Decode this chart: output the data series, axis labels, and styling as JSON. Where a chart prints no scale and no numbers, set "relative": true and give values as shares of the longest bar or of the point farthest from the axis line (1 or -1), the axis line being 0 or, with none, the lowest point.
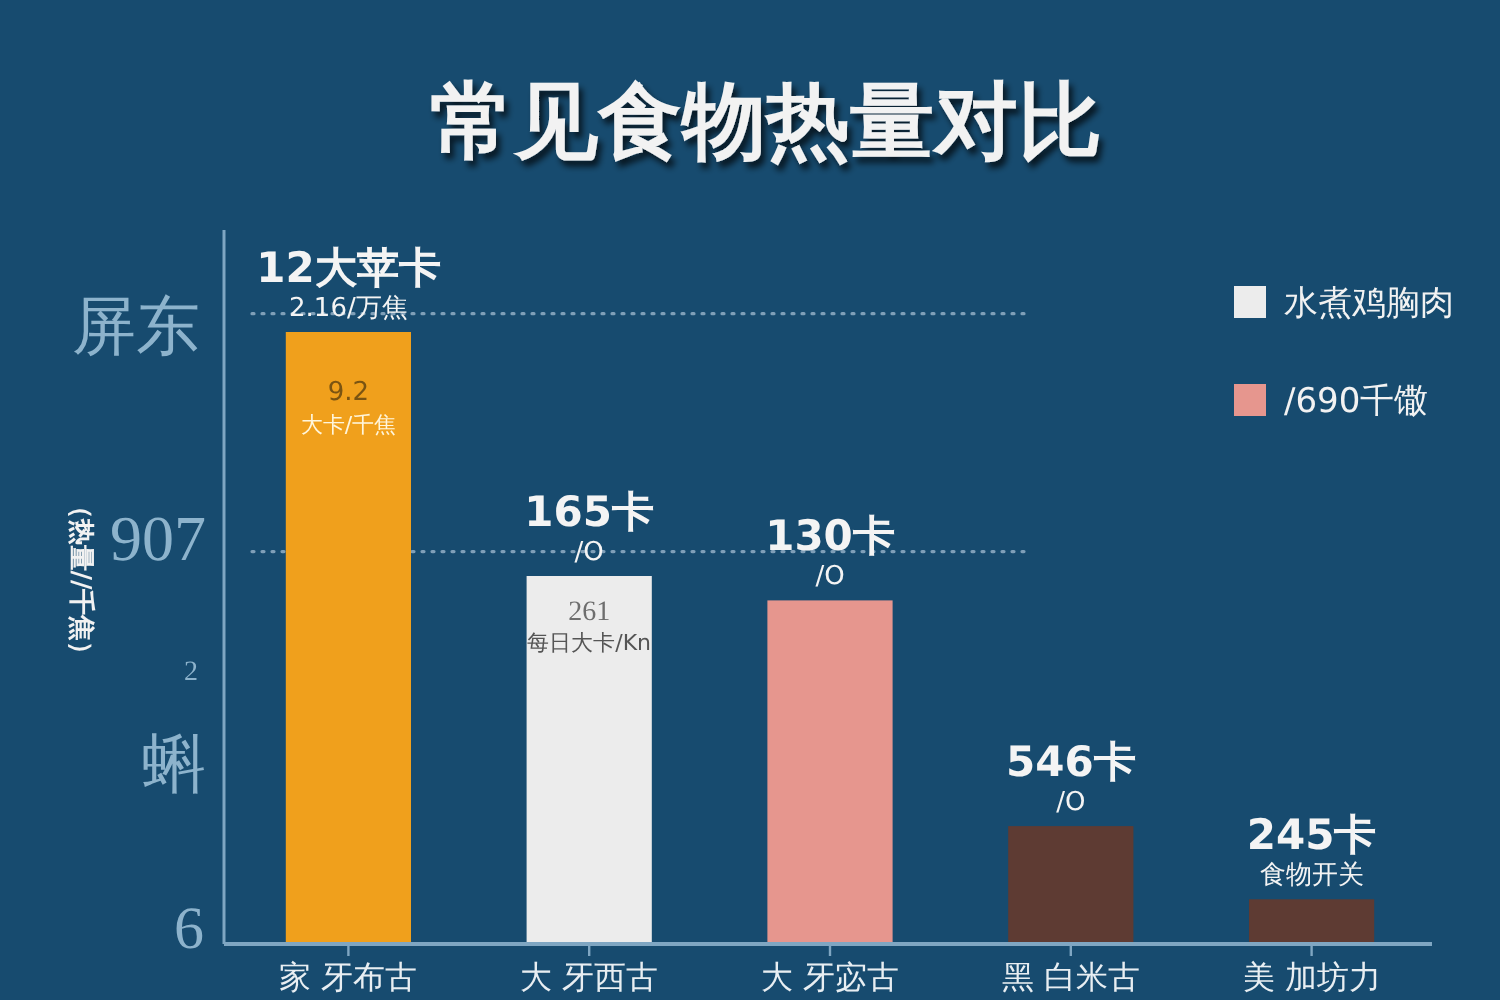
{
  "chart_data": {
    "type": "bar",
    "title": "常见食物热量对比",
    "ylabel": "（热量//千焦）",
    "categories": [
      "家 牙布古",
      "大 牙西古",
      "大 牙宓古",
      "黑 白米古",
      "美 加坊力"
    ],
    "relative": true,
    "stacked": true,
    "legend": "top right",
    "series": [
      {
        "color": "#f0a01c",
        "values": [
          1,
          null,
          null,
          null,
          null
        ]
      },
      {
        "name": "水煮鸡胸肉",
        "color": "#ececec",
        "values": [
          null,
          0.6,
          null,
          null,
          null
        ]
      },
      {
        "name": "/690千馓",
        "color": "#e6968e",
        "values": [
          null,
          null,
          0.56,
          null,
          null
        ]
      },
      {
        "color": "#5e3b33",
        "values": [
          null,
          null,
          null,
          0.19,
          null
        ]
      },
      {
        "color": "#5e3b33",
        "values": [
          null,
          null,
          null,
          null,
          0.07
        ]
      }
    ],
    "ref_lines": [
      {
        "axis": "y",
        "value": 1.03,
        "color": "#7f9fb8",
        "line_style": "dotted"
      },
      {
        "axis": "y",
        "value": 0.64,
        "color": "#7f9fb8",
        "line_style": "dotted"
      }
    ],
    "annotations": [
      "屏东",
      "907",
      "2",
      "蝌",
      "6",
      "9.2",
      "大卡/千焦",
      "261",
      "每日大卡/Kn",
      {
        "text": "12大苹卡",
        "x": "家 牙布古",
        "y": 1
      },
      {
        "text": "2.16/万焦",
        "x": "家 牙布古",
        "y": 1
      },
      {
        "text": "165卡",
        "x": "大 牙西古",
        "y": 0.6
      },
      {
        "text": "/O",
        "x": "大 牙西古",
        "y": 0.6
      },
      {
        "text": "130卡",
        "x": "大 牙宓古",
        "y": 0.56
      },
      {
        "text": "/O",
        "x": "大 牙宓古",
        "y": 0.56
      },
      {
        "text": "546卡",
        "x": "黑 白米古",
        "y": 0.19
      },
      {
        "text": "/O",
        "x": "黑 白米古",
        "y": 0.19
      },
      {
        "text": "245卡",
        "x": "美 加坊力",
        "y": 0.07
      },
      {
        "text": "食物开关",
        "x": "美 加坊力",
        "y": 0.07
      }
    ]
  }
}
